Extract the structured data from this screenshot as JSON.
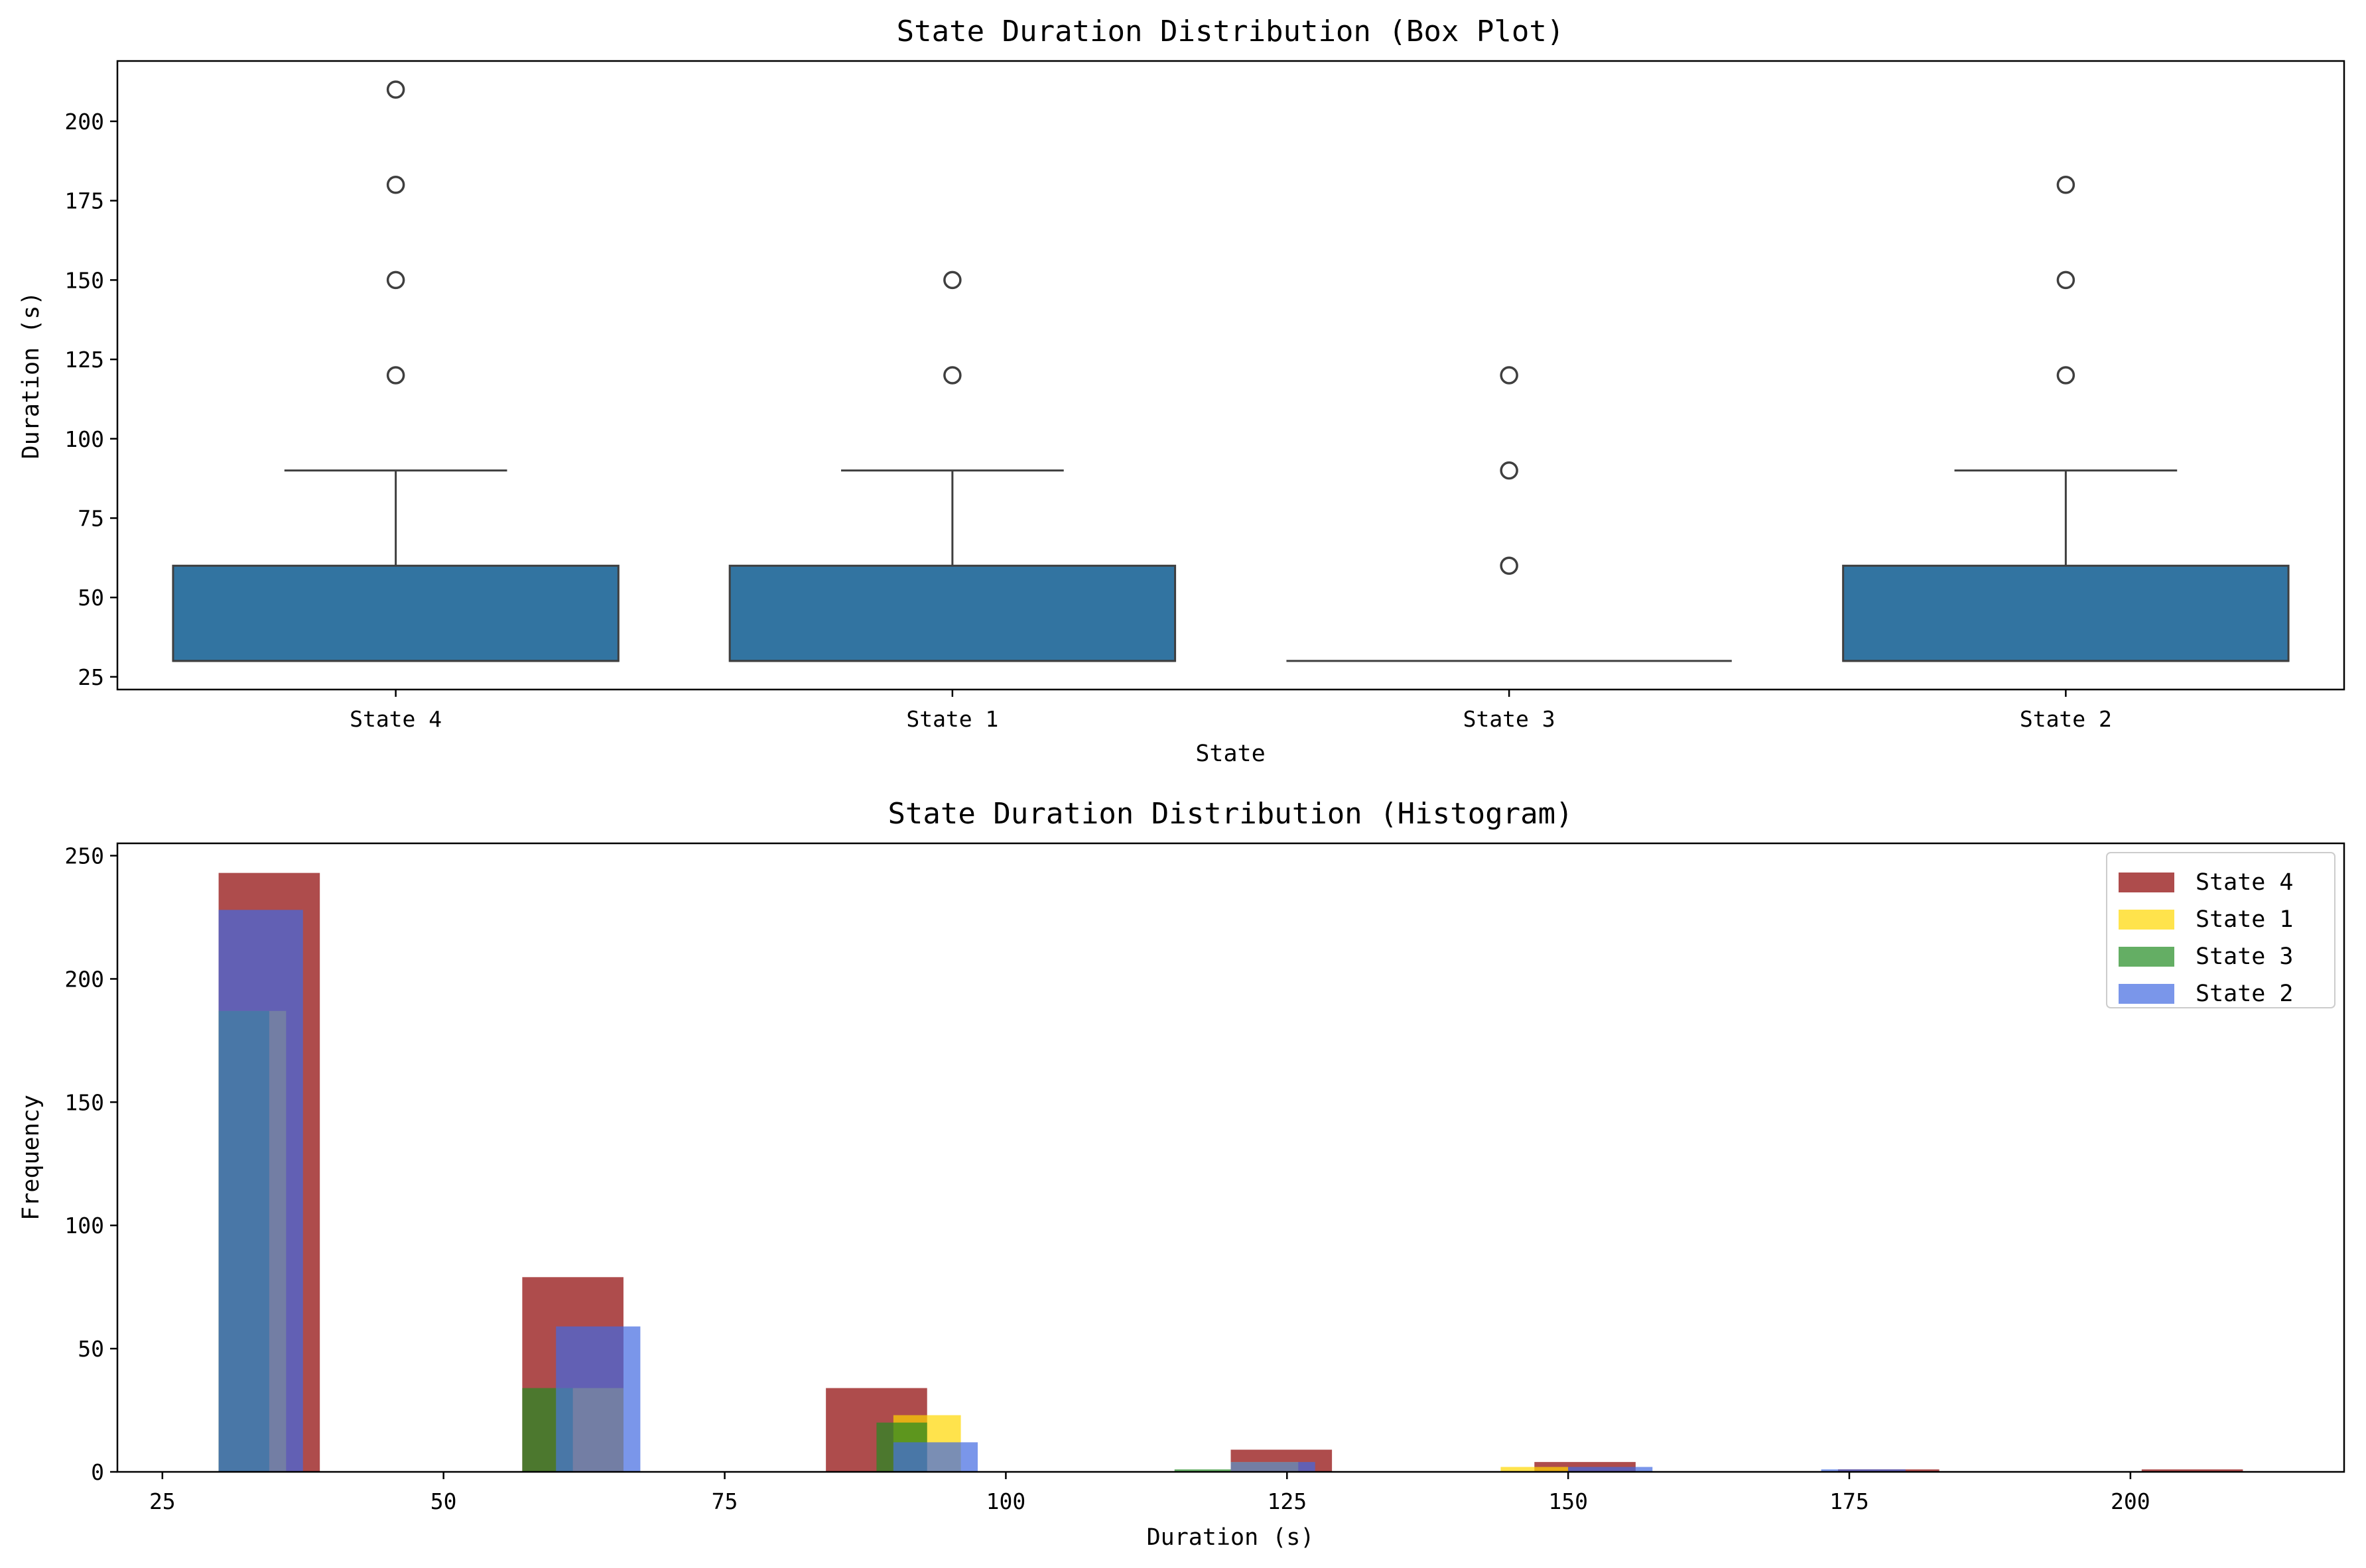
{
  "chart_data": [
    {
      "type": "box",
      "title": "State Duration Distribution (Box Plot)",
      "xlabel": "State",
      "ylabel": "Duration (s)",
      "categories": [
        "State 4",
        "State 1",
        "State 3",
        "State 2"
      ],
      "ylim": [
        21,
        219
      ],
      "yticks": [
        25,
        50,
        75,
        100,
        125,
        150,
        175,
        200
      ],
      "box_color": "#3274a1",
      "grid": false,
      "boxes": [
        {
          "name": "State 4",
          "q1": 30,
          "median": 30,
          "q3": 60,
          "whisker_low": 30,
          "whisker_high": 90,
          "outliers": [
            120,
            150,
            180,
            210
          ]
        },
        {
          "name": "State 1",
          "q1": 30,
          "median": 30,
          "q3": 60,
          "whisker_low": 30,
          "whisker_high": 90,
          "outliers": [
            120,
            150
          ]
        },
        {
          "name": "State 3",
          "q1": 30,
          "median": 30,
          "q3": 30,
          "whisker_low": 30,
          "whisker_high": 30,
          "outliers": [
            60,
            90,
            120
          ]
        },
        {
          "name": "State 2",
          "q1": 30,
          "median": 30,
          "q3": 60,
          "whisker_low": 30,
          "whisker_high": 90,
          "outliers": [
            120,
            150,
            180
          ]
        }
      ]
    },
    {
      "type": "histogram",
      "title": "State Duration Distribution (Histogram)",
      "xlabel": "Duration (s)",
      "ylabel": "Frequency",
      "xlim": [
        21,
        219
      ],
      "ylim": [
        0,
        255
      ],
      "xticks": [
        25,
        50,
        75,
        100,
        125,
        150,
        175,
        200
      ],
      "yticks": [
        0,
        50,
        100,
        150,
        200,
        250
      ],
      "legend_position": "top-right",
      "grid": false,
      "series": [
        {
          "name": "State 4",
          "color": "#8b0000",
          "opacity": 0.7,
          "bars": [
            [
              30,
              39,
              243
            ],
            [
              57,
              66,
              79
            ],
            [
              84,
              93,
              34
            ],
            [
              120,
              129,
              9
            ],
            [
              147,
              156,
              4
            ],
            [
              174,
              183,
              1
            ],
            [
              201,
              210,
              1
            ]
          ]
        },
        {
          "name": "State 1",
          "color": "#ffd700",
          "opacity": 0.7,
          "bars": [
            [
              30,
              36,
              187
            ],
            [
              60,
              66,
              34
            ],
            [
              90,
              96,
              23
            ],
            [
              120,
              126,
              4
            ],
            [
              144,
              150,
              2
            ]
          ]
        },
        {
          "name": "State 3",
          "color": "#228b22",
          "opacity": 0.7,
          "bars": [
            [
              30,
              34.5,
              187
            ],
            [
              57,
              61.5,
              34
            ],
            [
              88.5,
              93,
              20
            ],
            [
              115,
              120,
              1
            ]
          ]
        },
        {
          "name": "State 2",
          "color": "#4169e1",
          "opacity": 0.7,
          "bars": [
            [
              30,
              37.5,
              228
            ],
            [
              60,
              67.5,
              59
            ],
            [
              90,
              97.5,
              12
            ],
            [
              120,
              127.5,
              4
            ],
            [
              150,
              157.5,
              2
            ],
            [
              172.5,
              180,
              1
            ]
          ]
        }
      ]
    }
  ]
}
